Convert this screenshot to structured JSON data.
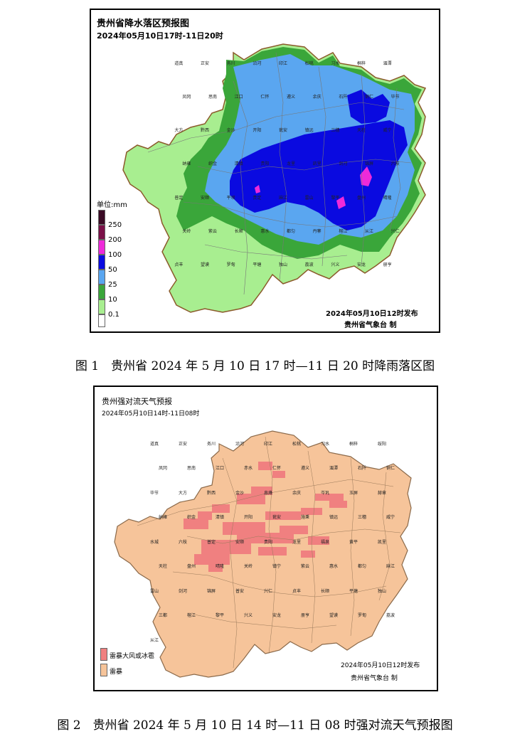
{
  "map1": {
    "title": "贵州省降水落区预报图",
    "subtitle": "2024年05月10日17时-11日20时",
    "legend": {
      "unit": "单位:mm",
      "levels": [
        {
          "label": "250",
          "color": "#3a0a24"
        },
        {
          "label": "200",
          "color": "#7a1048"
        },
        {
          "label": "100",
          "color": "#ee2ad9"
        },
        {
          "label": "50",
          "color": "#0a0ae0"
        },
        {
          "label": "25",
          "color": "#5aa6f0"
        },
        {
          "label": "10",
          "color": "#3aa63a"
        },
        {
          "label": "0.1",
          "color": "#a8ee90"
        }
      ]
    },
    "issued": "2024年05月10日12时发布",
    "agency": "贵州省气象台 制",
    "counties": [
      "道真",
      "正安",
      "务川",
      "沿河",
      "印江",
      "松桃",
      "习水",
      "桐梓",
      "湄潭",
      "凤冈",
      "思南",
      "江口",
      "仁怀",
      "遵义",
      "余庆",
      "石阡",
      "铜仁",
      "毕节",
      "大方",
      "黔西",
      "金沙",
      "开阳",
      "瓮安",
      "镇远",
      "三穗",
      "天柱",
      "威宁",
      "纳雍",
      "织金",
      "清镇",
      "贵阳",
      "龙里",
      "凯里",
      "剑河",
      "锦屏",
      "六枝",
      "普定",
      "安顺",
      "平坝",
      "贵定",
      "麻江",
      "雷山",
      "黎平",
      "盘州",
      "晴隆",
      "关岭",
      "紫云",
      "长顺",
      "惠水",
      "都匀",
      "丹寨",
      "榕江",
      "从江",
      "兴仁",
      "贞丰",
      "望谟",
      "罗甸",
      "平塘",
      "独山",
      "荔波",
      "兴义",
      "安龙",
      "册亨"
    ]
  },
  "caption1": "图 1　贵州省 2024 年 5 月 10 日 17 时—11 日 20 时降雨落区图",
  "map2": {
    "title": "贵州强对流天气预报",
    "subtitle": "2024年05月10日14时-11日08时",
    "legend": [
      {
        "label": "雷暴大风或冰雹",
        "color": "#f08080"
      },
      {
        "label": "雷暴",
        "color": "#f6c49a"
      }
    ],
    "issued": "2024年05月10日12时发布",
    "agency": "贵州省气象台 制",
    "counties": [
      "道真",
      "正安",
      "务川",
      "沿河",
      "印江",
      "松桃",
      "习水",
      "桐梓",
      "绥阳",
      "凤冈",
      "思南",
      "江口",
      "赤水",
      "仁怀",
      "遵义",
      "湄潭",
      "石阡",
      "铜仁",
      "毕节",
      "大方",
      "黔西",
      "金沙",
      "息烽",
      "余庆",
      "岑巩",
      "玉屏",
      "赫章",
      "纳雍",
      "织金",
      "清镇",
      "开阳",
      "瓮安",
      "施秉",
      "镇远",
      "三穗",
      "威宁",
      "水城",
      "六枝",
      "普定",
      "安顺",
      "贵阳",
      "龙里",
      "福泉",
      "黄平",
      "凯里",
      "天柱",
      "盘州",
      "晴隆",
      "关岭",
      "镇宁",
      "紫云",
      "惠水",
      "都匀",
      "麻江",
      "雷山",
      "剑河",
      "锦屏",
      "普安",
      "兴仁",
      "贞丰",
      "长顺",
      "平塘",
      "独山",
      "三都",
      "榕江",
      "黎平",
      "兴义",
      "安龙",
      "册亨",
      "望谟",
      "罗甸",
      "荔波",
      "从江"
    ]
  },
  "caption2": "图 2　贵州省 2024 年 5 月 10 日 14 时—11 日 08 时强对流天气预报图"
}
